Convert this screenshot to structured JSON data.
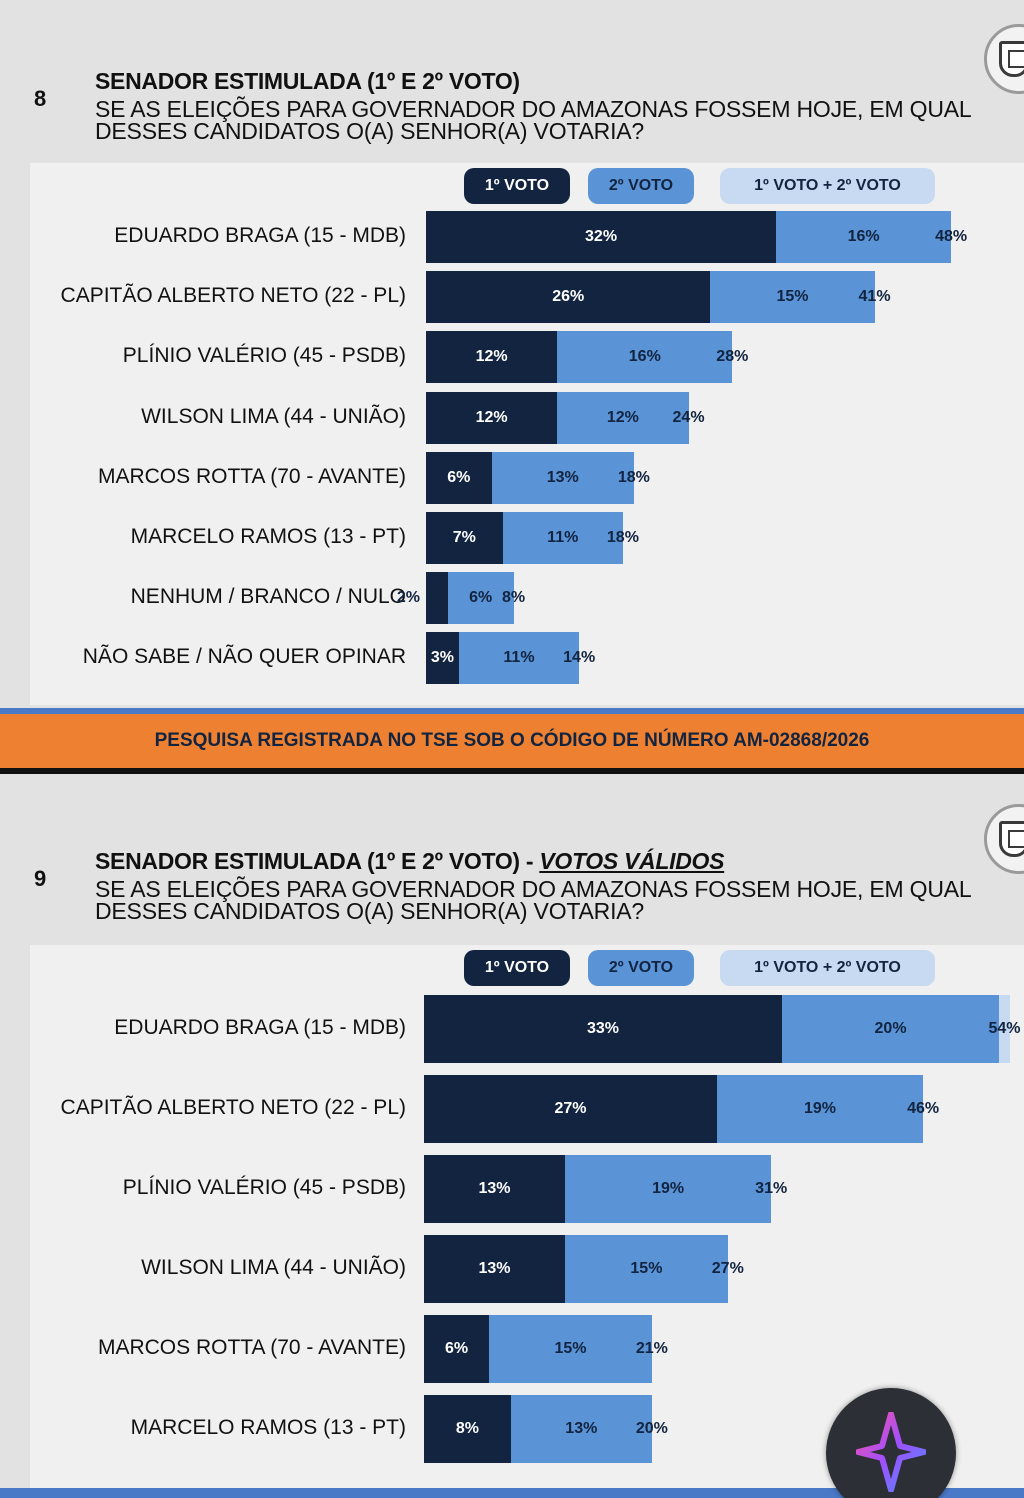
{
  "banner": {
    "text": "PESQUISA REGISTRADA NO TSE SOB O CÓDIGO DE NÚMERO AM-02868/2026"
  },
  "legend": {
    "v1": "1º VOTO",
    "v2": "2º VOTO",
    "v3": "1º VOTO + 2º VOTO"
  },
  "colors": {
    "voto1": "#12243f",
    "voto2": "#5a93d6",
    "total": "#c7daf2",
    "banner": "#ee8131",
    "accent": "#4a79c8"
  },
  "icons": {
    "logo": "shield-crest-icon",
    "fab": "sparkle-star-icon"
  },
  "chart_data": [
    {
      "type": "bar",
      "number": "8",
      "title": "SENADOR ESTIMULADA (1º E 2º VOTO)",
      "title_suffix": "",
      "subtitle_line1": "SE AS ELEIÇÕES PARA GOVERNADOR DO AMAZONAS FOSSEM HOJE, EM QUAL",
      "subtitle_line2": "DESSES CANDIDATOS O(A) SENHOR(A) VOTARIA?",
      "categories": [
        "EDUARDO BRAGA (15 - MDB)",
        "CAPITÃO ALBERTO NETO (22 - PL)",
        "PLÍNIO VALÉRIO (45 - PSDB)",
        "WILSON LIMA (44 - UNIÃO)",
        "MARCOS ROTTA (70 - AVANTE)",
        "MARCELO RAMOS (13 - PT)",
        "NENHUM / BRANCO / NULO",
        "NÃO SABE / NÃO QUER OPINAR"
      ],
      "series": [
        {
          "name": "1º VOTO",
          "values": [
            32,
            26,
            12,
            12,
            6,
            7,
            2,
            3
          ],
          "labels": [
            "32%",
            "26%",
            "12%",
            "12%",
            "6%",
            "7%",
            "2%",
            "3%"
          ]
        },
        {
          "name": "2º VOTO",
          "values": [
            16,
            15,
            16,
            12,
            13,
            11,
            6,
            11
          ],
          "labels": [
            "16%",
            "15%",
            "16%",
            "12%",
            "13%",
            "11%",
            "6%",
            "11%"
          ]
        },
        {
          "name": "1º VOTO + 2º VOTO",
          "values": [
            48,
            41,
            28,
            24,
            18,
            18,
            8,
            14
          ],
          "labels": [
            "48%",
            "41%",
            "28%",
            "24%",
            "18%",
            "18%",
            "8%",
            "14%"
          ]
        }
      ],
      "stacking": "horizontal-stacked",
      "legend_position": "top"
    },
    {
      "type": "bar",
      "number": "9",
      "title": "SENADOR ESTIMULADA (1º E 2º VOTO) - ",
      "title_suffix": "VOTOS VÁLIDOS",
      "subtitle_line1": "SE AS ELEIÇÕES PARA GOVERNADOR DO AMAZONAS FOSSEM HOJE, EM QUAL",
      "subtitle_line2": "DESSES CANDIDATOS O(A) SENHOR(A) VOTARIA?",
      "categories": [
        "EDUARDO BRAGA (15 - MDB)",
        "CAPITÃO ALBERTO NETO (22 - PL)",
        "PLÍNIO VALÉRIO (45 - PSDB)",
        "WILSON LIMA (44 - UNIÃO)",
        "MARCOS ROTTA (70 - AVANTE)",
        "MARCELO RAMOS (13 - PT)"
      ],
      "series": [
        {
          "name": "1º VOTO",
          "values": [
            33,
            27,
            13,
            13,
            6,
            8
          ],
          "labels": [
            "33%",
            "27%",
            "13%",
            "13%",
            "6%",
            "8%"
          ]
        },
        {
          "name": "2º VOTO",
          "values": [
            20,
            19,
            19,
            15,
            15,
            13
          ],
          "labels": [
            "20%",
            "19%",
            "19%",
            "15%",
            "15%",
            "13%"
          ]
        },
        {
          "name": "1º VOTO + 2º VOTO",
          "values": [
            54,
            46,
            31,
            27,
            21,
            20
          ],
          "labels": [
            "54%",
            "46%",
            "31%",
            "27%",
            "21%",
            "20%"
          ]
        }
      ],
      "stacking": "horizontal-stacked",
      "legend_position": "top"
    }
  ]
}
